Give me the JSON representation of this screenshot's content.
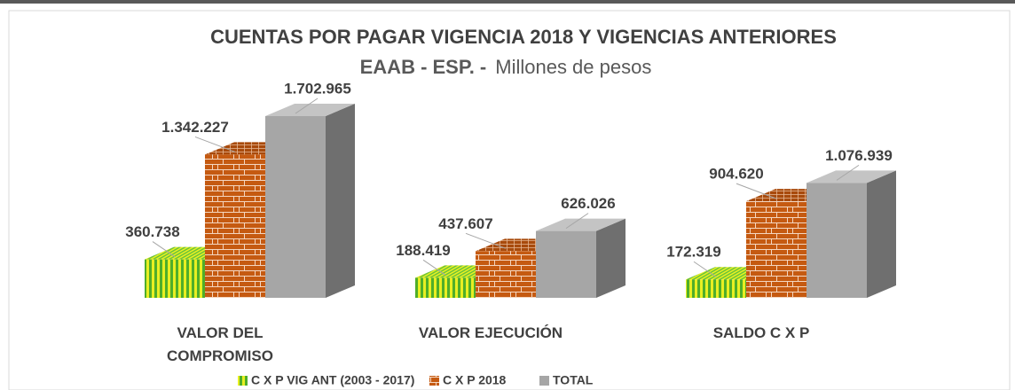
{
  "chart_data": {
    "type": "bar3d",
    "title": "CUENTAS POR PAGAR VIGENCIA 2018 Y VIGENCIAS ANTERIORES",
    "subtitle": [
      "EAAB - ESP.  -",
      "Millones de pesos"
    ],
    "categories": [
      "VALOR DEL COMPROMISO",
      "VALOR EJECUCIÓN",
      "SALDO C X P"
    ],
    "series": [
      {
        "name": "C X P VIG ANT (2003 - 2017)",
        "color": "#5cb82e",
        "values": [
          360738,
          188419,
          172319
        ],
        "value_labels": [
          "360.738",
          "188.419",
          "172.319"
        ]
      },
      {
        "name": "C X P 2018",
        "color": "#c55a11",
        "values": [
          1342227,
          437607,
          904620
        ],
        "value_labels": [
          "1.342.227",
          "437.607",
          "904.620"
        ]
      },
      {
        "name": "TOTAL",
        "color": "#a6a6a6",
        "values": [
          1702965,
          626026,
          1076939
        ],
        "value_labels": [
          "1.702.965",
          "626.026",
          "1.076.939"
        ]
      }
    ],
    "legend": "bottom"
  }
}
